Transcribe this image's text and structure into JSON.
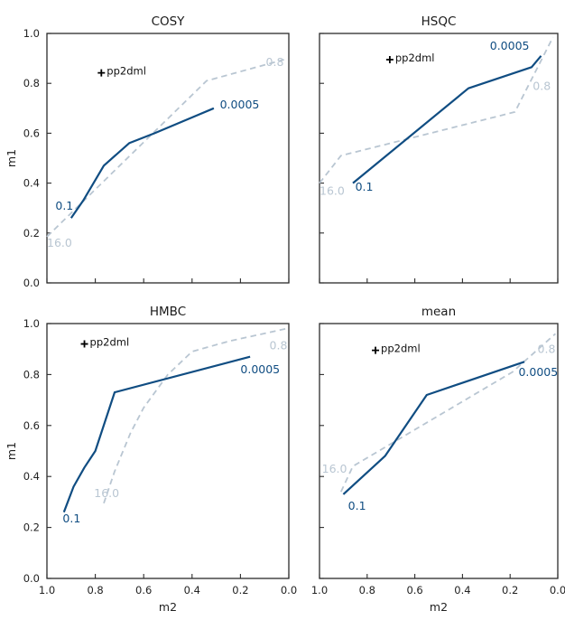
{
  "figure": {
    "background": "#ffffff",
    "description": "2x2 grid of threshold curve plots"
  },
  "colors": {
    "solid_line": "#104d82",
    "dashed_line": "#b9c6d2",
    "spine": "#2b2b2b",
    "tick_text": "#222222",
    "title_text": "#1a1a1a",
    "annotation_text": "#111111",
    "annotation_marker": "#000000"
  },
  "chart_data": [
    {
      "type": "line",
      "title": "COSY",
      "xlabel": "",
      "ylabel": "m1",
      "xlim": [
        1.0,
        0.0
      ],
      "ylim": [
        0.0,
        1.0
      ],
      "x_ticks": [
        "1.0",
        "0.8",
        "0.6",
        "0.4",
        "0.2",
        "0.0"
      ],
      "y_ticks": [
        "1.0",
        "0.8",
        "0.6",
        "0.4",
        "0.2",
        "0.0"
      ],
      "show_x_tick_labels": false,
      "show_y_tick_labels": true,
      "grid": false,
      "series": [
        {
          "name": "baseline-dashed",
          "style": "dashed",
          "color_key": "dashed_line",
          "points": [
            [
              1.0,
              0.185
            ],
            [
              0.34,
              0.81
            ],
            [
              0.02,
              0.895
            ]
          ],
          "labels": [
            {
              "text": "16.0",
              "x": 1.0,
              "y": 0.16
            },
            {
              "text": "0.8",
              "x": 0.095,
              "y": 0.885
            }
          ]
        },
        {
          "name": "threshold-solid",
          "style": "solid",
          "color_key": "solid_line",
          "points": [
            [
              0.9,
              0.26
            ],
            [
              0.85,
              0.33
            ],
            [
              0.765,
              0.47
            ],
            [
              0.66,
              0.56
            ],
            [
              0.555,
              0.6
            ],
            [
              0.31,
              0.7
            ]
          ],
          "labels": [
            {
              "text": "0.1",
              "x": 0.965,
              "y": 0.31
            },
            {
              "text": "0.0005",
              "x": 0.285,
              "y": 0.715
            }
          ]
        }
      ],
      "annotations": [
        {
          "text": "pp2dml",
          "marker": "plus",
          "x": 0.775,
          "y": 0.842
        }
      ]
    },
    {
      "type": "line",
      "title": "HSQC",
      "xlabel": "",
      "ylabel": "",
      "xlim": [
        1.0,
        0.0
      ],
      "ylim": [
        0.0,
        1.0
      ],
      "x_ticks": [
        "1.0",
        "0.8",
        "0.6",
        "0.4",
        "0.2",
        "0.0"
      ],
      "y_ticks": [
        "1.0",
        "0.8",
        "0.6",
        "0.4",
        "0.2",
        "0.0"
      ],
      "show_x_tick_labels": false,
      "show_y_tick_labels": false,
      "grid": false,
      "series": [
        {
          "name": "baseline-dashed",
          "style": "dashed",
          "color_key": "dashed_line",
          "points": [
            [
              1.0,
              0.4
            ],
            [
              0.955,
              0.455
            ],
            [
              0.91,
              0.51
            ],
            [
              0.18,
              0.685
            ],
            [
              0.02,
              0.985
            ]
          ],
          "labels": [
            {
              "text": "16.0",
              "x": 1.0,
              "y": 0.37
            },
            {
              "text": "0.8",
              "x": 0.105,
              "y": 0.79
            }
          ]
        },
        {
          "name": "threshold-solid",
          "style": "solid",
          "color_key": "solid_line",
          "points": [
            [
              0.86,
              0.4
            ],
            [
              0.375,
              0.78
            ],
            [
              0.11,
              0.865
            ],
            [
              0.07,
              0.91
            ]
          ],
          "labels": [
            {
              "text": "0.1",
              "x": 0.85,
              "y": 0.385
            },
            {
              "text": "0.0005",
              "x": 0.285,
              "y": 0.95
            }
          ]
        }
      ],
      "annotations": [
        {
          "text": "pp2dml",
          "marker": "plus",
          "x": 0.705,
          "y": 0.895
        }
      ]
    },
    {
      "type": "line",
      "title": "HMBC",
      "xlabel": "m2",
      "ylabel": "m1",
      "xlim": [
        1.0,
        0.0
      ],
      "ylim": [
        0.0,
        1.0
      ],
      "x_ticks": [
        "1.0",
        "0.8",
        "0.6",
        "0.4",
        "0.2",
        "0.0"
      ],
      "y_ticks": [
        "1.0",
        "0.8",
        "0.6",
        "0.4",
        "0.2",
        "0.0"
      ],
      "show_x_tick_labels": true,
      "show_y_tick_labels": true,
      "grid": false,
      "series": [
        {
          "name": "baseline-dashed",
          "style": "dashed",
          "color_key": "dashed_line",
          "points": [
            [
              0.765,
              0.295
            ],
            [
              0.72,
              0.42
            ],
            [
              0.655,
              0.57
            ],
            [
              0.6,
              0.67
            ],
            [
              0.5,
              0.8
            ],
            [
              0.4,
              0.89
            ],
            [
              0.25,
              0.93
            ],
            [
              0.01,
              0.98
            ]
          ],
          "labels": [
            {
              "text": "16.0",
              "x": 0.805,
              "y": 0.335
            },
            {
              "text": "0.8",
              "x": 0.08,
              "y": 0.915
            }
          ]
        },
        {
          "name": "threshold-solid",
          "style": "solid",
          "color_key": "solid_line",
          "points": [
            [
              0.93,
              0.26
            ],
            [
              0.89,
              0.36
            ],
            [
              0.845,
              0.435
            ],
            [
              0.8,
              0.5
            ],
            [
              0.72,
              0.73
            ],
            [
              0.16,
              0.87
            ]
          ],
          "labels": [
            {
              "text": "0.1",
              "x": 0.935,
              "y": 0.235
            },
            {
              "text": "0.0005",
              "x": 0.2,
              "y": 0.82
            }
          ]
        }
      ],
      "annotations": [
        {
          "text": "pp2dml",
          "marker": "plus",
          "x": 0.845,
          "y": 0.92
        }
      ]
    },
    {
      "type": "line",
      "title": "mean",
      "xlabel": "m2",
      "ylabel": "",
      "xlim": [
        1.0,
        0.0
      ],
      "ylim": [
        0.0,
        1.0
      ],
      "x_ticks": [
        "1.0",
        "0.8",
        "0.6",
        "0.4",
        "0.2",
        "0.0"
      ],
      "y_ticks": [
        "1.0",
        "0.8",
        "0.6",
        "0.4",
        "0.2",
        "0.0"
      ],
      "show_x_tick_labels": true,
      "show_y_tick_labels": false,
      "grid": false,
      "series": [
        {
          "name": "baseline-dashed",
          "style": "dashed",
          "color_key": "dashed_line",
          "points": [
            [
              0.91,
              0.34
            ],
            [
              0.86,
              0.44
            ],
            [
              0.19,
              0.81
            ],
            [
              0.01,
              0.96
            ]
          ],
          "labels": [
            {
              "text": "16.0",
              "x": 0.99,
              "y": 0.43
            },
            {
              "text": "0.8",
              "x": 0.085,
              "y": 0.9
            }
          ]
        },
        {
          "name": "threshold-solid",
          "style": "solid",
          "color_key": "solid_line",
          "points": [
            [
              0.9,
              0.33
            ],
            [
              0.725,
              0.48
            ],
            [
              0.55,
              0.72
            ],
            [
              0.14,
              0.85
            ]
          ],
          "labels": [
            {
              "text": "0.1",
              "x": 0.88,
              "y": 0.285
            },
            {
              "text": "0.0005",
              "x": 0.165,
              "y": 0.81
            }
          ]
        }
      ],
      "annotations": [
        {
          "text": "pp2dml",
          "marker": "plus",
          "x": 0.765,
          "y": 0.895
        }
      ]
    }
  ]
}
